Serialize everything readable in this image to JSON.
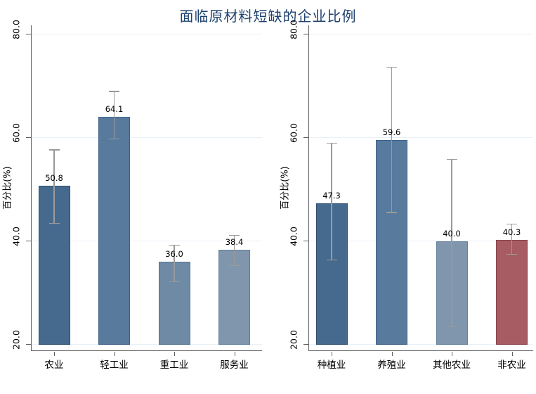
{
  "title": "面临原材料短缺的企业比例",
  "colors": {
    "title": "#1e426f",
    "axis": "#606060",
    "gridline": "#e9f1f8",
    "error_bar": "#9a9a9a",
    "text": "#000000",
    "background": "#ffffff"
  },
  "chart_data": [
    {
      "type": "bar",
      "panel": "industry",
      "categories": [
        "农业",
        "轻工业",
        "重工业",
        "服务业"
      ],
      "values": [
        50.8,
        64.1,
        36.0,
        38.4
      ],
      "value_labels": [
        "50.8",
        "64.1",
        "36.0",
        "38.4"
      ],
      "ci_low": [
        43.4,
        59.7,
        32.1,
        35.2
      ],
      "ci_high": [
        57.6,
        68.9,
        39.2,
        41.1
      ],
      "bar_fills": [
        "#466a8e",
        "#587b9d",
        "#6e8aa4",
        "#8096ac"
      ],
      "bar_borders": [
        "#30506f",
        "#40628a",
        "#547693",
        "#65819b"
      ],
      "ylabel": "百分比(%)",
      "ytick_labels": [
        "20.0",
        "40.0",
        "60.0",
        "80.0"
      ],
      "ytick_values": [
        20,
        40,
        60,
        80
      ],
      "ylim": [
        20,
        81.5
      ],
      "grid": true,
      "legend": "none"
    },
    {
      "type": "bar",
      "panel": "sector",
      "categories": [
        "种植业",
        "养殖业",
        "其他农业",
        "非农业"
      ],
      "values": [
        47.3,
        59.6,
        40.0,
        40.3
      ],
      "value_labels": [
        "47.3",
        "59.6",
        "40.0",
        "40.3"
      ],
      "ci_low": [
        36.3,
        45.5,
        23.4,
        37.4
      ],
      "ci_high": [
        58.9,
        73.6,
        55.8,
        43.3
      ],
      "bar_fills": [
        "#466a8e",
        "#587b9d",
        "#8096ac",
        "#a65c62"
      ],
      "bar_borders": [
        "#30506f",
        "#40628a",
        "#65819b",
        "#86444b"
      ],
      "ylabel": "百分比(%)",
      "ytick_labels": [
        "20.0",
        "40.0",
        "60.0",
        "80.0"
      ],
      "ytick_values": [
        20,
        40,
        60,
        80
      ],
      "ylim": [
        20,
        81.5
      ],
      "grid": true,
      "legend": "none"
    }
  ]
}
